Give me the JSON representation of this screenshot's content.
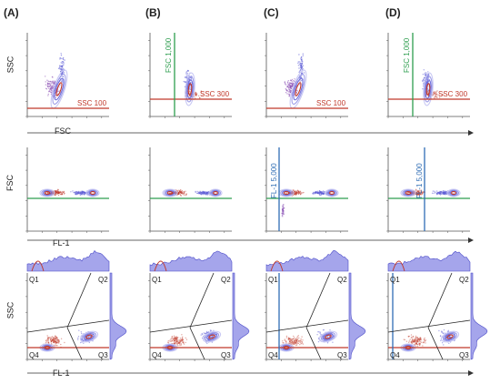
{
  "columns": [
    "(A)",
    "(B)",
    "(C)",
    "(D)"
  ],
  "rows": [
    {
      "y_label": "SSC",
      "x_label": "FSC"
    },
    {
      "y_label": "FSC",
      "x_label": "FL-1"
    },
    {
      "y_label": "SSC",
      "x_label": "FL-1"
    }
  ],
  "row1_gates": [
    {
      "h_label": "SSC 100",
      "v_label": ""
    },
    {
      "h_label": "SSC 300",
      "v_label": "FSC 1,000"
    },
    {
      "h_label": "SSC 100",
      "v_label": ""
    },
    {
      "h_label": "SSC 300",
      "v_label": "FSC 1,000"
    }
  ],
  "row2_gates": [
    {
      "v_label": ""
    },
    {
      "v_label": ""
    },
    {
      "v_label": "FL-1 5,000"
    },
    {
      "v_label": "FL-1 5,000"
    }
  ],
  "quadrants": [
    "Q1",
    "Q2",
    "Q3",
    "Q4"
  ],
  "colors": {
    "red_gate": "#c0392b",
    "green_gate": "#2e9e4f",
    "blue_gate": "#2f6db5",
    "density": "#5b5bd6",
    "hist_fill": "#8e8ee6"
  }
}
